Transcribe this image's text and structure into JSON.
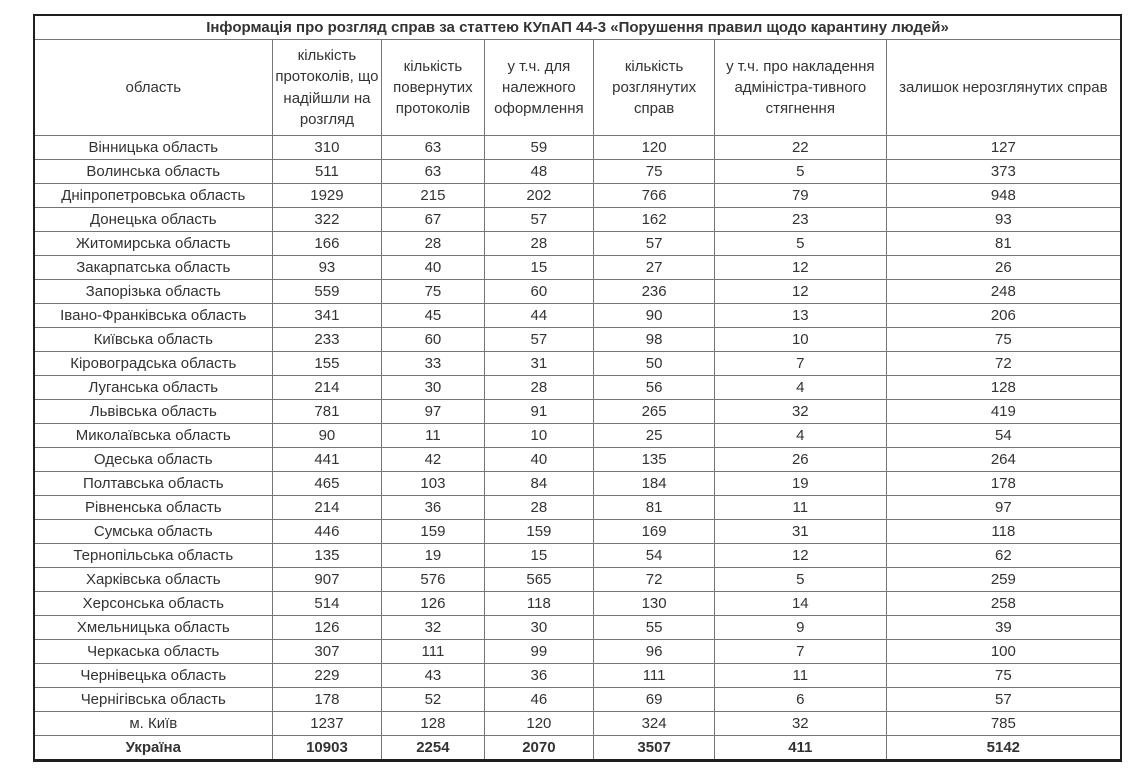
{
  "colors": {
    "background": "#ffffff",
    "text": "#333333",
    "border_inner": "#757575",
    "border_outer": "#1f1f1f"
  },
  "table": {
    "title": "Інформація про розгляд справ за статтею КУпАП 44-3 «Порушення правил щодо карантину людей»",
    "columns": [
      {
        "label": "область"
      },
      {
        "label": "кількість протоколів, що надійшли на розгляд"
      },
      {
        "label": "кількість повернутих протоколів"
      },
      {
        "label": "у т.ч. для належного оформлення"
      },
      {
        "label": "кількість розглянутих справ"
      },
      {
        "label": "у т.ч. про накладення адміністра-тивного стягнення"
      },
      {
        "label": "залишок нерозглянутих справ"
      }
    ],
    "rows": [
      [
        "Вінницька область",
        "310",
        "63",
        "59",
        "120",
        "22",
        "127"
      ],
      [
        "Волинська область",
        "511",
        "63",
        "48",
        "75",
        "5",
        "373"
      ],
      [
        "Дніпропетровська область",
        "1929",
        "215",
        "202",
        "766",
        "79",
        "948"
      ],
      [
        "Донецька область",
        "322",
        "67",
        "57",
        "162",
        "23",
        "93"
      ],
      [
        "Житомирська область",
        "166",
        "28",
        "28",
        "57",
        "5",
        "81"
      ],
      [
        "Закарпатська область",
        "93",
        "40",
        "15",
        "27",
        "12",
        "26"
      ],
      [
        "Запорізька область",
        "559",
        "75",
        "60",
        "236",
        "12",
        "248"
      ],
      [
        "Івано-Франківська область",
        "341",
        "45",
        "44",
        "90",
        "13",
        "206"
      ],
      [
        "Київська область",
        "233",
        "60",
        "57",
        "98",
        "10",
        "75"
      ],
      [
        "Кіровоградська область",
        "155",
        "33",
        "31",
        "50",
        "7",
        "72"
      ],
      [
        "Луганська область",
        "214",
        "30",
        "28",
        "56",
        "4",
        "128"
      ],
      [
        "Львівська область",
        "781",
        "97",
        "91",
        "265",
        "32",
        "419"
      ],
      [
        "Миколаївська область",
        "90",
        "11",
        "10",
        "25",
        "4",
        "54"
      ],
      [
        "Одеська область",
        "441",
        "42",
        "40",
        "135",
        "26",
        "264"
      ],
      [
        "Полтавська область",
        "465",
        "103",
        "84",
        "184",
        "19",
        "178"
      ],
      [
        "Рівненська область",
        "214",
        "36",
        "28",
        "81",
        "11",
        "97"
      ],
      [
        "Сумська область",
        "446",
        "159",
        "159",
        "169",
        "31",
        "118"
      ],
      [
        "Тернопільська область",
        "135",
        "19",
        "15",
        "54",
        "12",
        "62"
      ],
      [
        "Харківська область",
        "907",
        "576",
        "565",
        "72",
        "5",
        "259"
      ],
      [
        "Херсонська область",
        "514",
        "126",
        "118",
        "130",
        "14",
        "258"
      ],
      [
        "Хмельницька область",
        "126",
        "32",
        "30",
        "55",
        "9",
        "39"
      ],
      [
        "Черкаська область",
        "307",
        "111",
        "99",
        "96",
        "7",
        "100"
      ],
      [
        "Чернівецька область",
        "229",
        "43",
        "36",
        "111",
        "11",
        "75"
      ],
      [
        "Чернігівська область",
        "178",
        "52",
        "46",
        "69",
        "6",
        "57"
      ],
      [
        "м. Київ",
        "1237",
        "128",
        "120",
        "324",
        "32",
        "785"
      ]
    ],
    "total_row": [
      "Україна",
      "10903",
      "2254",
      "2070",
      "3507",
      "411",
      "5142"
    ]
  }
}
